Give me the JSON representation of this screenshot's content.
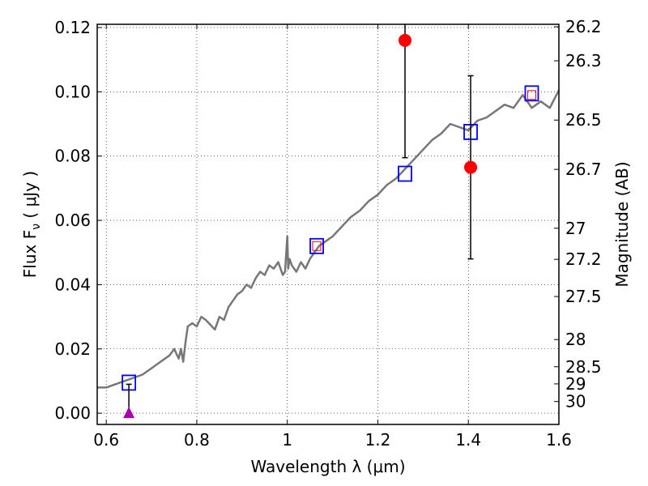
{
  "chart_data": {
    "type": "scatter",
    "xlabel": "Wavelength  λ (μm)",
    "ylabel": "Flux  Fν  ( μJy )",
    "ylabel_right": "Magnitude (AB)",
    "xlim": [
      0.58,
      1.6
    ],
    "ylim": [
      -0.0035,
      0.121
    ],
    "grid": true,
    "x_ticks": [
      {
        "value": 0.6,
        "label": "0.6"
      },
      {
        "value": 0.8,
        "label": "0.8"
      },
      {
        "value": 1.0,
        "label": "1"
      },
      {
        "value": 1.2,
        "label": "1.2"
      },
      {
        "value": 1.4,
        "label": "1.4"
      },
      {
        "value": 1.6,
        "label": "1.6"
      }
    ],
    "y_ticks": [
      {
        "value": 0.0,
        "label": "0.00"
      },
      {
        "value": 0.02,
        "label": "0.02"
      },
      {
        "value": 0.04,
        "label": "0.04"
      },
      {
        "value": 0.06,
        "label": "0.06"
      },
      {
        "value": 0.08,
        "label": "0.08"
      },
      {
        "value": 0.1,
        "label": "0.10"
      },
      {
        "value": 0.12,
        "label": "0.12"
      }
    ],
    "right_ticks": [
      {
        "mag": 26.2,
        "label": "26.2"
      },
      {
        "mag": 26.3,
        "label": "26.3"
      },
      {
        "mag": 26.5,
        "label": "26.5"
      },
      {
        "mag": 26.7,
        "label": "26.7"
      },
      {
        "mag": 27.0,
        "label": "27"
      },
      {
        "mag": 27.2,
        "label": "27.2"
      },
      {
        "mag": 27.5,
        "label": "27.5"
      },
      {
        "mag": 28.0,
        "label": "28"
      },
      {
        "mag": 28.5,
        "label": "28.5"
      },
      {
        "mag": 29.0,
        "label": "29"
      },
      {
        "mag": 30.0,
        "label": "30"
      }
    ],
    "series": [
      {
        "name": "model spectrum",
        "kind": "line",
        "color": "#777777",
        "x": [
          0.58,
          0.6,
          0.62,
          0.64,
          0.66,
          0.68,
          0.7,
          0.72,
          0.74,
          0.75,
          0.76,
          0.765,
          0.77,
          0.775,
          0.78,
          0.79,
          0.8,
          0.81,
          0.82,
          0.84,
          0.85,
          0.86,
          0.87,
          0.88,
          0.89,
          0.9,
          0.91,
          0.92,
          0.93,
          0.94,
          0.95,
          0.96,
          0.97,
          0.98,
          0.99,
          0.995,
          1.0,
          1.002,
          1.005,
          1.01,
          1.02,
          1.03,
          1.04,
          1.05,
          1.06,
          1.07,
          1.08,
          1.09,
          1.1,
          1.12,
          1.14,
          1.16,
          1.18,
          1.2,
          1.22,
          1.24,
          1.26,
          1.28,
          1.3,
          1.32,
          1.34,
          1.36,
          1.38,
          1.4,
          1.42,
          1.44,
          1.46,
          1.48,
          1.5,
          1.52,
          1.53,
          1.54,
          1.55,
          1.56,
          1.58,
          1.6
        ],
        "y": [
          0.008,
          0.008,
          0.009,
          0.01,
          0.011,
          0.012,
          0.014,
          0.016,
          0.018,
          0.02,
          0.017,
          0.02,
          0.016,
          0.022,
          0.027,
          0.028,
          0.027,
          0.03,
          0.029,
          0.026,
          0.03,
          0.029,
          0.033,
          0.035,
          0.037,
          0.038,
          0.04,
          0.039,
          0.042,
          0.044,
          0.043,
          0.046,
          0.045,
          0.047,
          0.043,
          0.044,
          0.055,
          0.045,
          0.048,
          0.046,
          0.044,
          0.047,
          0.045,
          0.048,
          0.05,
          0.052,
          0.053,
          0.054,
          0.055,
          0.058,
          0.061,
          0.063,
          0.066,
          0.068,
          0.071,
          0.073,
          0.076,
          0.079,
          0.082,
          0.085,
          0.087,
          0.09,
          0.089,
          0.088,
          0.091,
          0.092,
          0.094,
          0.096,
          0.095,
          0.099,
          0.097,
          0.095,
          0.096,
          0.097,
          0.095,
          0.1005
        ]
      },
      {
        "name": "model photometry",
        "kind": "open-square",
        "color": "#0000ff",
        "x": [
          0.65,
          1.065,
          1.26,
          1.405,
          1.54
        ],
        "y": [
          0.0095,
          0.052,
          0.0745,
          0.0875,
          0.0995
        ]
      },
      {
        "name": "observed photometry",
        "kind": "filled-circle",
        "color": "#ff0000",
        "x": [
          1.26,
          1.405
        ],
        "y": [
          0.116,
          0.0765
        ],
        "err_low": [
          0.0795,
          0.048
        ],
        "err_high": [
          0.125,
          0.105
        ]
      },
      {
        "name": "faint measurement",
        "kind": "small-open-square",
        "color": "#ff0000",
        "x": [
          1.065,
          1.54
        ],
        "y": [
          0.052,
          0.099
        ]
      },
      {
        "name": "upper limit",
        "kind": "filled-triangle",
        "color": "#aa00aa",
        "x": [
          0.65
        ],
        "y": [
          0.0
        ],
        "err_low": [
          0.0
        ],
        "err_high": [
          0.009
        ]
      }
    ]
  }
}
